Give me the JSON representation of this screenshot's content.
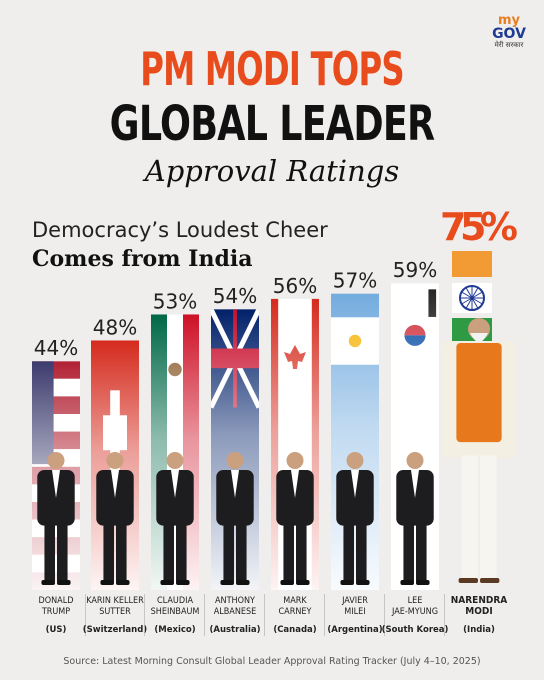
{
  "logo": {
    "my": "my",
    "gov": "GOV",
    "sub": "मेरी सरकार"
  },
  "header": {
    "title_line1": "PM MODI TOPS",
    "title_line2": "GLOBAL LEADER",
    "title_line3": "Approval Ratings"
  },
  "subtitle": {
    "line1": "Democracy’s Loudest Cheer",
    "line2": "Comes from India"
  },
  "source": "Source: Latest Morning Consult Global Leader Approval Rating Tracker (July 4–10, 2025)",
  "colors": {
    "accent": "#e84c1d",
    "highlight_value": "#e84c1d",
    "text": "#111111",
    "background": "#efeeec"
  },
  "chart_data": {
    "type": "bar",
    "title": "PM MODI TOPS GLOBAL LEADER Approval Ratings",
    "unit": "%",
    "categories": [
      {
        "name": [
          "DONALD",
          "TRUMP"
        ],
        "country": "(US)",
        "flag": "us-flag"
      },
      {
        "name": [
          "KARIN KELLER",
          "SUTTER"
        ],
        "country": "(Switzerland)",
        "flag": "swiss-flag"
      },
      {
        "name": [
          "CLAUDIA",
          "SHEINBAUM"
        ],
        "country": "(Mexico)",
        "flag": "mexico-flag"
      },
      {
        "name": [
          "ANTHONY",
          "ALBANESE"
        ],
        "country": "(Australia)",
        "flag": "australia-flag"
      },
      {
        "name": [
          "MARK",
          "CARNEY"
        ],
        "country": "(Canada)",
        "flag": "canada-flag"
      },
      {
        "name": [
          "JAVIER",
          "MILEI"
        ],
        "country": "(Argentina)",
        "flag": "argentina-flag"
      },
      {
        "name": [
          "LEE",
          "JAE-MYUNG"
        ],
        "country": "(South Korea)",
        "flag": "south-korea-flag"
      },
      {
        "name": [
          "NARENDRA",
          "MODI"
        ],
        "country": "(India)",
        "flag": "india-flag",
        "highlight": true
      }
    ],
    "values": [
      44,
      48,
      53,
      54,
      56,
      57,
      59,
      75
    ],
    "value_labels": [
      "44%",
      "48%",
      "53%",
      "54%",
      "56%",
      "57%",
      "59%",
      "75%"
    ],
    "ylim": [
      0,
      75
    ]
  }
}
